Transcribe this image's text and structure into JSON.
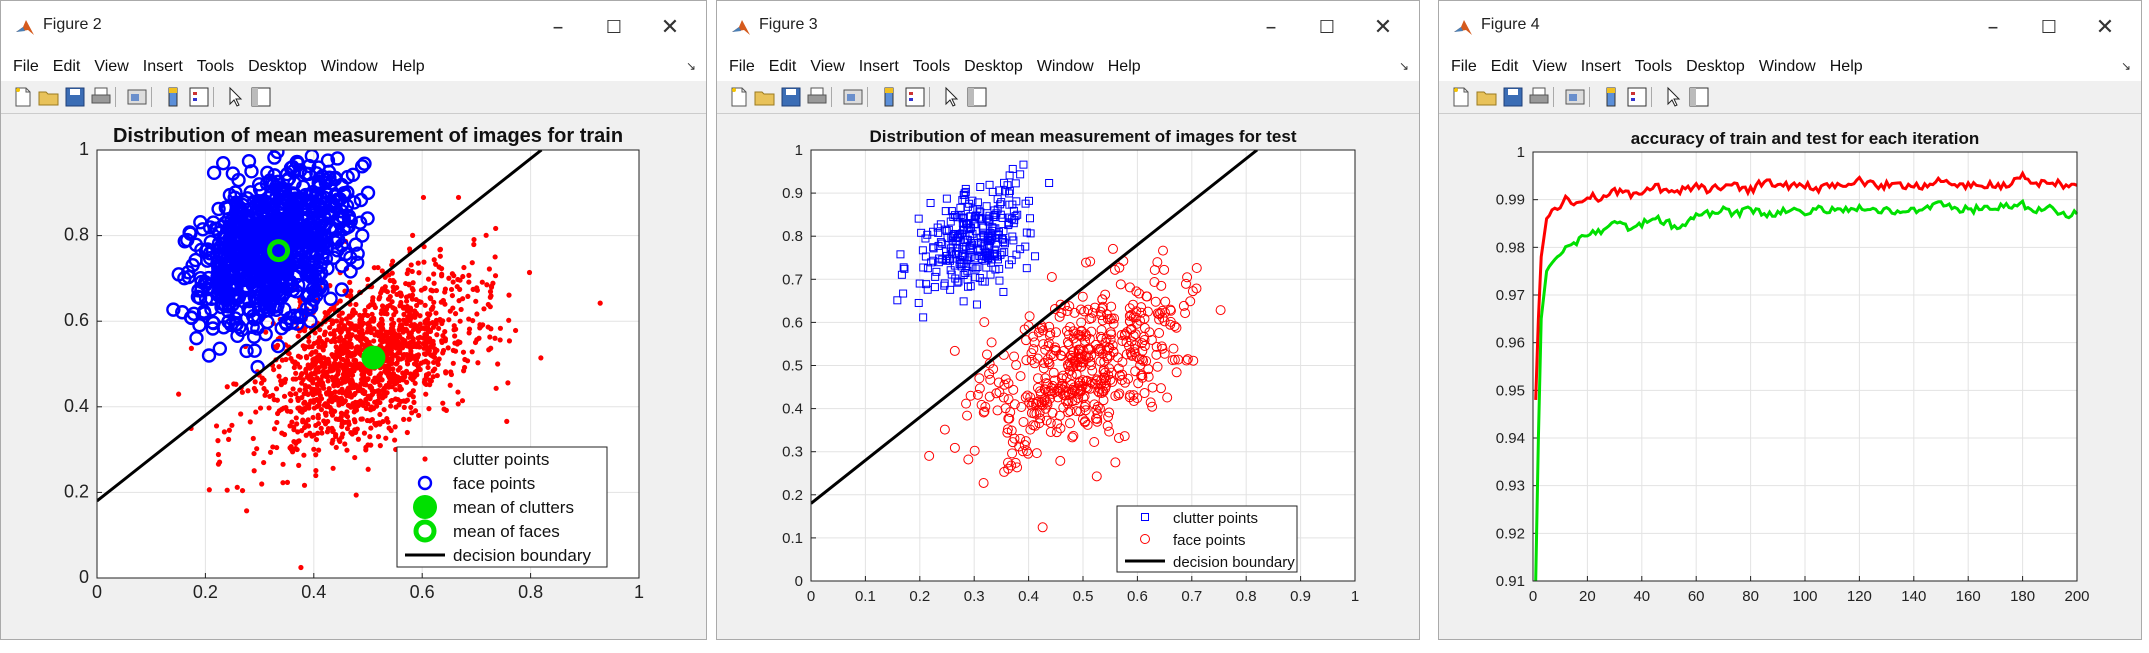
{
  "menu": [
    "File",
    "Edit",
    "View",
    "Insert",
    "Tools",
    "Desktop",
    "Window",
    "Help"
  ],
  "windows": [
    {
      "title": "Figure 2",
      "chart_data": {
        "type": "scatter",
        "title": "Distribution of mean measurement of images for train",
        "xlim": [
          0,
          1
        ],
        "ylim": [
          0,
          1
        ],
        "xticks": [
          "0",
          "0.2",
          "0.4",
          "0.6",
          "0.8",
          "1"
        ],
        "yticks": [
          "0",
          "0.2",
          "0.4",
          "0.6",
          "0.8",
          "1"
        ],
        "grid": true,
        "legend_position": "bottom-right",
        "legend": [
          "clutter points",
          "face points",
          "mean of clutters",
          "mean of faces",
          "decision boundary"
        ],
        "series": [
          {
            "name": "clutter points",
            "marker": "dot",
            "color": "#ff0000",
            "cluster": {
              "cx": 0.5,
              "cy": 0.51,
              "sx": 0.1,
              "sy": 0.09
            }
          },
          {
            "name": "face points",
            "marker": "circle",
            "color": "#0000ff",
            "cluster": {
              "cx": 0.32,
              "cy": 0.77,
              "sx": 0.07,
              "sy": 0.08
            }
          },
          {
            "name": "mean of clutters",
            "marker": "big-dot",
            "color": "#00e000",
            "x": [
              0.51
            ],
            "y": [
              0.515
            ]
          },
          {
            "name": "mean of faces",
            "marker": "big-circle",
            "color": "#00e000",
            "x": [
              0.335
            ],
            "y": [
              0.765
            ]
          },
          {
            "name": "decision boundary",
            "marker": "line",
            "color": "#000000",
            "x": [
              0,
              0.82
            ],
            "y": [
              0.18,
              1
            ]
          }
        ]
      }
    },
    {
      "title": "Figure 3",
      "chart_data": {
        "type": "scatter",
        "title": "Distribution of mean measurement of images for test",
        "xlim": [
          0,
          1
        ],
        "ylim": [
          0,
          1
        ],
        "xticks": [
          "0",
          "0.1",
          "0.2",
          "0.3",
          "0.4",
          "0.5",
          "0.6",
          "0.7",
          "0.8",
          "0.9",
          "1"
        ],
        "yticks": [
          "0",
          "0.1",
          "0.2",
          "0.3",
          "0.4",
          "0.5",
          "0.6",
          "0.7",
          "0.8",
          "0.9",
          "1"
        ],
        "grid": true,
        "legend_position": "bottom-right",
        "legend": [
          "clutter points",
          "face points",
          "decision boundary"
        ],
        "series": [
          {
            "name": "clutter points",
            "marker": "square",
            "color": "#0000ff",
            "cluster": {
              "cx": 0.3,
              "cy": 0.79,
              "sx": 0.05,
              "sy": 0.06
            }
          },
          {
            "name": "face points",
            "marker": "circle",
            "color": "#ff0000",
            "cluster": {
              "cx": 0.5,
              "cy": 0.5,
              "sx": 0.09,
              "sy": 0.09
            }
          },
          {
            "name": "decision boundary",
            "marker": "line",
            "color": "#000000",
            "x": [
              0,
              0.82
            ],
            "y": [
              0.18,
              1
            ]
          }
        ]
      }
    },
    {
      "title": "Figure 4",
      "chart_data": {
        "type": "line",
        "title": "accuracy of train and test for each iteration",
        "xlim": [
          0,
          200
        ],
        "ylim": [
          0.91,
          1
        ],
        "xticks": [
          "0",
          "20",
          "40",
          "60",
          "80",
          "100",
          "120",
          "140",
          "160",
          "180",
          "200"
        ],
        "yticks": [
          "0.91",
          "0.92",
          "0.93",
          "0.94",
          "0.95",
          "0.96",
          "0.97",
          "0.98",
          "0.99",
          "1"
        ],
        "grid": true,
        "series": [
          {
            "color": "#ff0000",
            "x": [
              1,
              2,
              3,
              5,
              8,
              12,
              16,
              20,
              25,
              30,
              35,
              40,
              45,
              50,
              55,
              60,
              65,
              70,
              75,
              80,
              85,
              90,
              95,
              100,
              105,
              110,
              115,
              120,
              125,
              130,
              135,
              140,
              145,
              150,
              155,
              160,
              165,
              170,
              175,
              180,
              185,
              190,
              195,
              200
            ],
            "y": [
              0.948,
              0.965,
              0.978,
              0.986,
              0.988,
              0.99,
              0.989,
              0.991,
              0.99,
              0.992,
              0.991,
              0.991,
              0.993,
              0.991,
              0.992,
              0.993,
              0.992,
              0.993,
              0.993,
              0.992,
              0.994,
              0.993,
              0.993,
              0.993,
              0.992,
              0.993,
              0.993,
              0.994,
              0.993,
              0.993,
              0.993,
              0.993,
              0.993,
              0.994,
              0.993,
              0.993,
              0.993,
              0.993,
              0.993,
              0.995,
              0.993,
              0.994,
              0.993,
              0.993
            ]
          },
          {
            "color": "#00e000",
            "x": [
              1,
              2,
              3,
              5,
              8,
              12,
              16,
              20,
              25,
              30,
              35,
              40,
              45,
              50,
              55,
              60,
              65,
              70,
              75,
              80,
              85,
              90,
              95,
              100,
              105,
              110,
              115,
              120,
              125,
              130,
              135,
              140,
              145,
              150,
              155,
              160,
              165,
              170,
              175,
              180,
              185,
              190,
              195,
              200
            ],
            "y": [
              0.91,
              0.94,
              0.965,
              0.975,
              0.978,
              0.98,
              0.981,
              0.983,
              0.983,
              0.985,
              0.984,
              0.985,
              0.986,
              0.985,
              0.984,
              0.987,
              0.987,
              0.988,
              0.987,
              0.988,
              0.987,
              0.987,
              0.988,
              0.987,
              0.988,
              0.988,
              0.988,
              0.988,
              0.988,
              0.988,
              0.987,
              0.988,
              0.988,
              0.989,
              0.988,
              0.988,
              0.988,
              0.988,
              0.989,
              0.989,
              0.988,
              0.988,
              0.987,
              0.987
            ]
          }
        ]
      }
    }
  ]
}
